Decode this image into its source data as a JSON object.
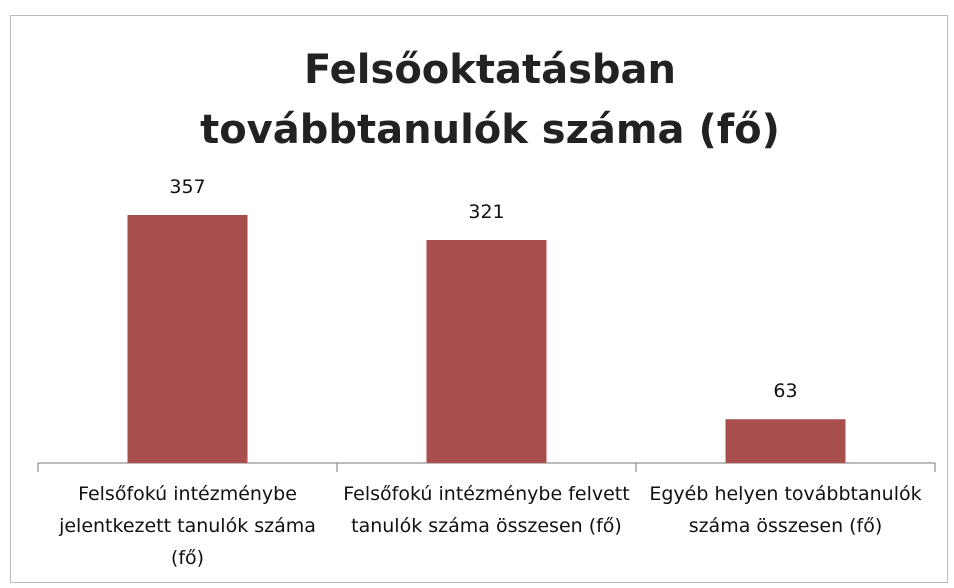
{
  "chart_data": {
    "type": "bar",
    "title": "Felsőoktatásban továbbtanulók száma (fő)",
    "categories": [
      "Felsőfokú intézménybe jelentkezett tanulók száma (fő)",
      "Felsőfokú intézménybe felvett tanulók száma összesen (fő)",
      "Egyéb helyen továbbtanulók száma összesen (fő)"
    ],
    "values": [
      357,
      321,
      63
    ],
    "color": "#a84e4c"
  }
}
